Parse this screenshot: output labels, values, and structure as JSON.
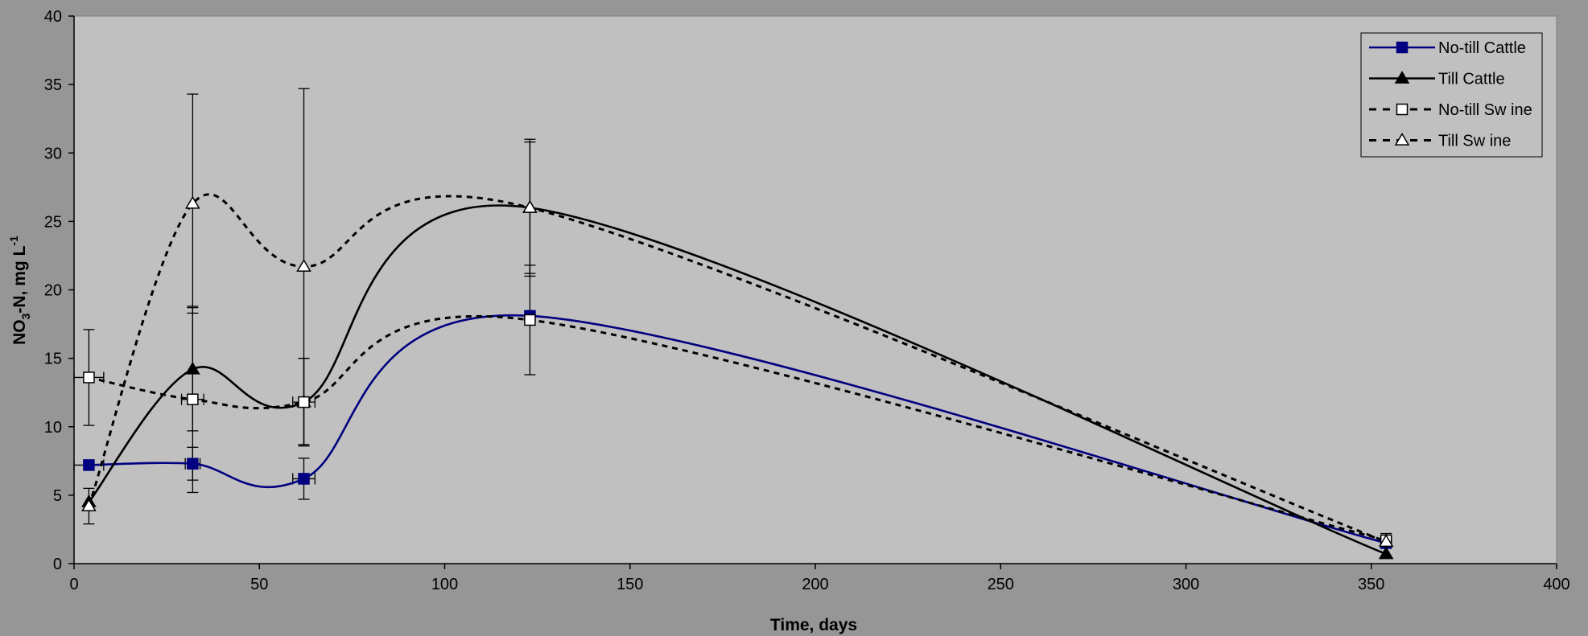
{
  "chart_data": {
    "type": "line",
    "title": "",
    "xlabel": "Time, days",
    "ylabel": {
      "main": "NO",
      "sub": "3",
      "rest": "-N, mg L",
      "sup": "-1"
    },
    "xlim": [
      0,
      400
    ],
    "ylim": [
      0,
      40
    ],
    "x_ticks": [
      0,
      50,
      100,
      150,
      200,
      250,
      300,
      350,
      400
    ],
    "y_ticks": [
      0,
      5,
      10,
      15,
      20,
      25,
      30,
      35,
      40
    ],
    "grid": false,
    "legend_position": "top-right",
    "x": [
      4,
      32,
      62,
      123,
      354
    ],
    "series": [
      {
        "name": "No-till Cattle",
        "color": "#000080",
        "marker": "filled-square",
        "dashed": false,
        "values": [
          7.2,
          7.3,
          6.2,
          18.1,
          1.5
        ],
        "err_y": [
          null,
          1.2,
          1.5,
          null,
          null
        ],
        "err_x": [
          4,
          2,
          3,
          null,
          null
        ]
      },
      {
        "name": "Till Cattle",
        "color": "#000000",
        "marker": "filled-triangle",
        "dashed": false,
        "values": [
          4.5,
          14.2,
          11.8,
          26.0,
          0.7
        ],
        "err_y": [
          null,
          4.5,
          3.2,
          5.0,
          null
        ],
        "err_x": [
          null,
          null,
          null,
          null,
          null
        ]
      },
      {
        "name": "No-till Sw ine",
        "color": "#000000",
        "marker": "open-square",
        "dashed": true,
        "values": [
          13.6,
          12.0,
          11.8,
          17.8,
          1.7
        ],
        "err_y": [
          3.5,
          6.8,
          3.2,
          4.0,
          0.5
        ],
        "err_x": [
          4,
          3,
          3,
          null,
          null
        ]
      },
      {
        "name": "Till Sw ine",
        "color": "#000000",
        "marker": "open-triangle",
        "dashed": true,
        "values": [
          4.2,
          26.3,
          21.7,
          26.0,
          1.6
        ],
        "err_y": [
          1.3,
          8.0,
          13.0,
          4.8,
          null
        ],
        "err_x": [
          null,
          null,
          null,
          null,
          null
        ]
      }
    ]
  }
}
